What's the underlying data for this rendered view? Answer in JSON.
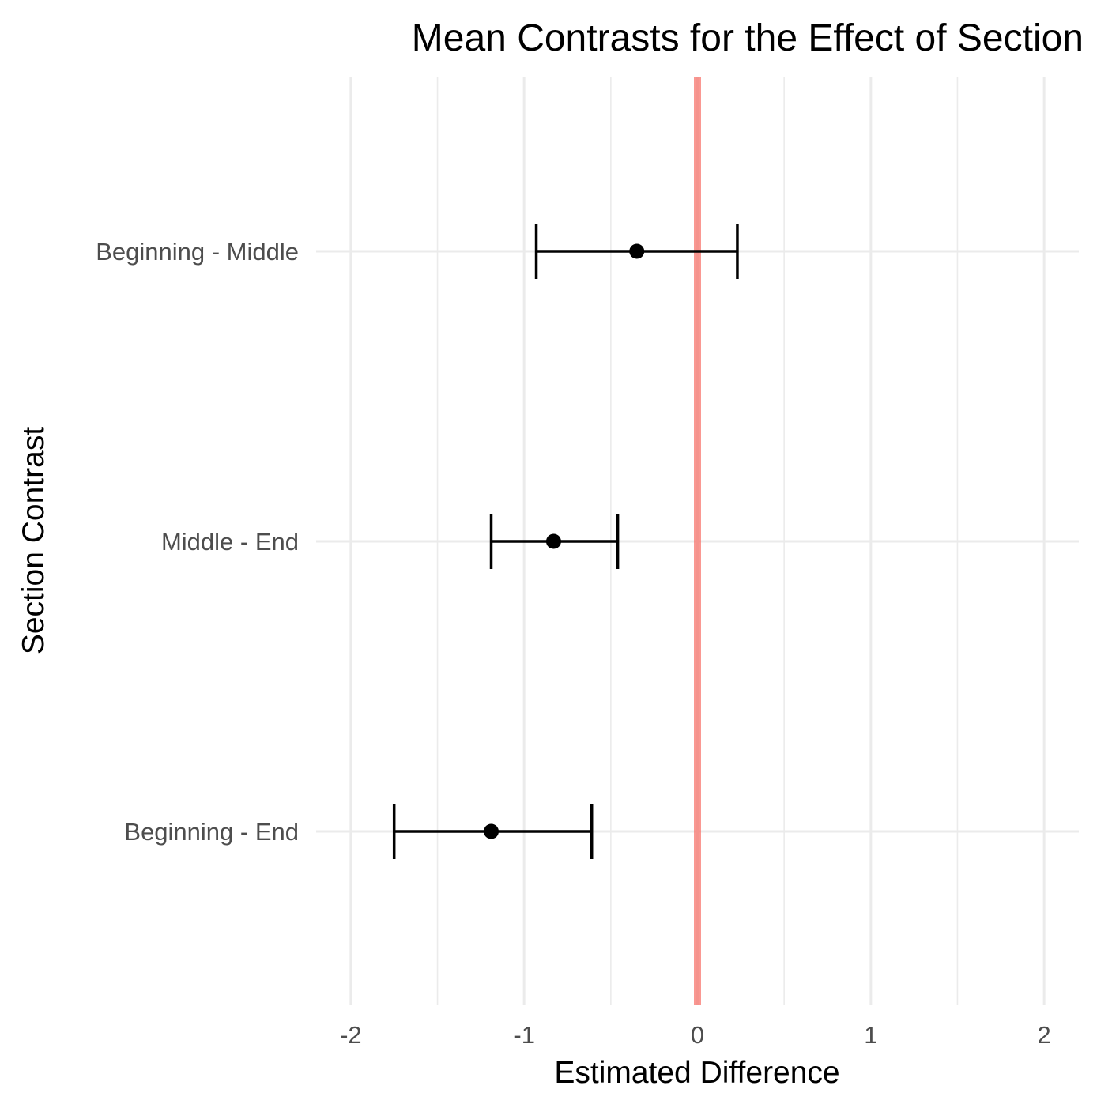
{
  "chart_data": {
    "type": "scatter",
    "subtype": "point-errorbar",
    "title": "Mean Contrasts for the Effect of Section",
    "xlabel": "Estimated Difference",
    "ylabel": "Section Contrast",
    "xlim": [
      -2.2,
      2.2
    ],
    "x_ticks": [
      "-2",
      "-1",
      "0",
      "1",
      "2"
    ],
    "x_tick_values": [
      -2,
      -1,
      0,
      1,
      2
    ],
    "categories": [
      "Beginning - Middle",
      "Middle - End",
      "Beginning - End"
    ],
    "estimates": [
      -0.35,
      -0.83,
      -1.19
    ],
    "lower": [
      -0.93,
      -1.19,
      -1.75
    ],
    "upper": [
      0.23,
      -0.46,
      -0.61
    ],
    "reference_line": {
      "x": 0,
      "color": "#f8766d"
    },
    "grid": true,
    "legend": "none",
    "point_color": "#000000"
  }
}
